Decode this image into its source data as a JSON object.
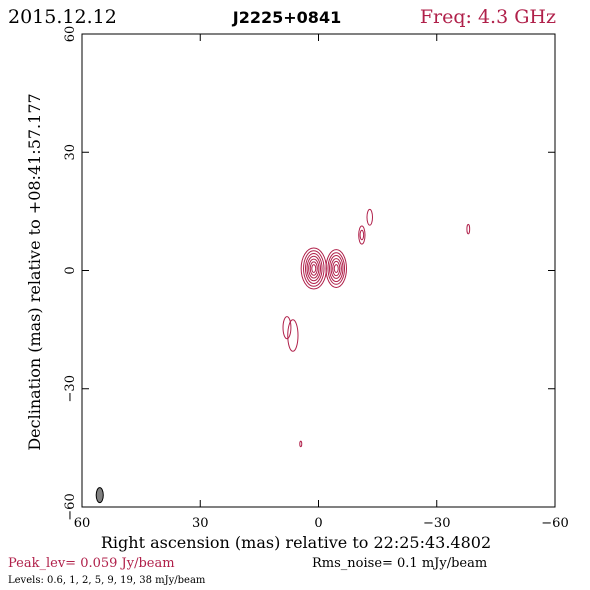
{
  "header": {
    "date": "2015.12.12",
    "source": "J2225+0841",
    "freq": "Freq: 4.3 GHz"
  },
  "footer": {
    "peak": "Peak_lev=  0.059 Jy/beam",
    "rms": "Rms_noise=  0.1 mJy/beam",
    "levels": "Levels: 0.6,    1,    2,    5,    9,    19,   38 mJy/beam"
  },
  "colors": {
    "contour": "#b0204a",
    "header_red": "#b0204a",
    "axis": "#000000",
    "beam": "#808080"
  },
  "chart_data": {
    "type": "contour",
    "xlabel": "Right ascension (mas) relative to 22:25:43.4802",
    "ylabel": "Declination (mas) relative to +08:41:57.177",
    "xlim": [
      60,
      -60
    ],
    "ylim": [
      -60,
      60
    ],
    "xticks": [
      60,
      30,
      0,
      -30,
      -60
    ],
    "yticks": [
      60,
      30,
      0,
      -30,
      -60
    ],
    "xtick_labels": [
      "60",
      "30",
      "0",
      "−30",
      "−60"
    ],
    "ytick_labels": [
      "60",
      "30",
      "0",
      "−30",
      "−60"
    ],
    "levels_mJy": [
      0.6,
      1,
      2,
      5,
      9,
      19,
      38
    ],
    "components": [
      {
        "x": 1.2,
        "y": 0.5,
        "rx": [
          3.2,
          2.6,
          2.1,
          1.7,
          1.3,
          0.9,
          0.5
        ],
        "ry": [
          5.2,
          4.5,
          3.8,
          3.1,
          2.4,
          1.7,
          1.0
        ]
      },
      {
        "x": -4.5,
        "y": 0.5,
        "rx": [
          2.6,
          2.1,
          1.7,
          1.3,
          0.9,
          0.5
        ],
        "ry": [
          4.8,
          4.0,
          3.3,
          2.5,
          1.8,
          1.0
        ]
      },
      {
        "x": 6.5,
        "y": -16.5,
        "rx": [
          1.3
        ],
        "ry": [
          4.0
        ]
      },
      {
        "x": 8.0,
        "y": -14.5,
        "rx": [
          1.0
        ],
        "ry": [
          2.8
        ]
      },
      {
        "x": -11.0,
        "y": 9.0,
        "rx": [
          0.8,
          0.45
        ],
        "ry": [
          2.3,
          1.2
        ]
      },
      {
        "x": -13.0,
        "y": 13.5,
        "rx": [
          0.7
        ],
        "ry": [
          2.0
        ]
      },
      {
        "x": -38.0,
        "y": 10.5,
        "rx": [
          0.35
        ],
        "ry": [
          1.2
        ]
      },
      {
        "x": 4.5,
        "y": -44.0,
        "rx": [
          0.25
        ],
        "ry": [
          0.7
        ]
      }
    ],
    "beam": {
      "x": 55.5,
      "y": -57.0,
      "major_mas": 3.8,
      "minor_mas": 1.8
    }
  }
}
